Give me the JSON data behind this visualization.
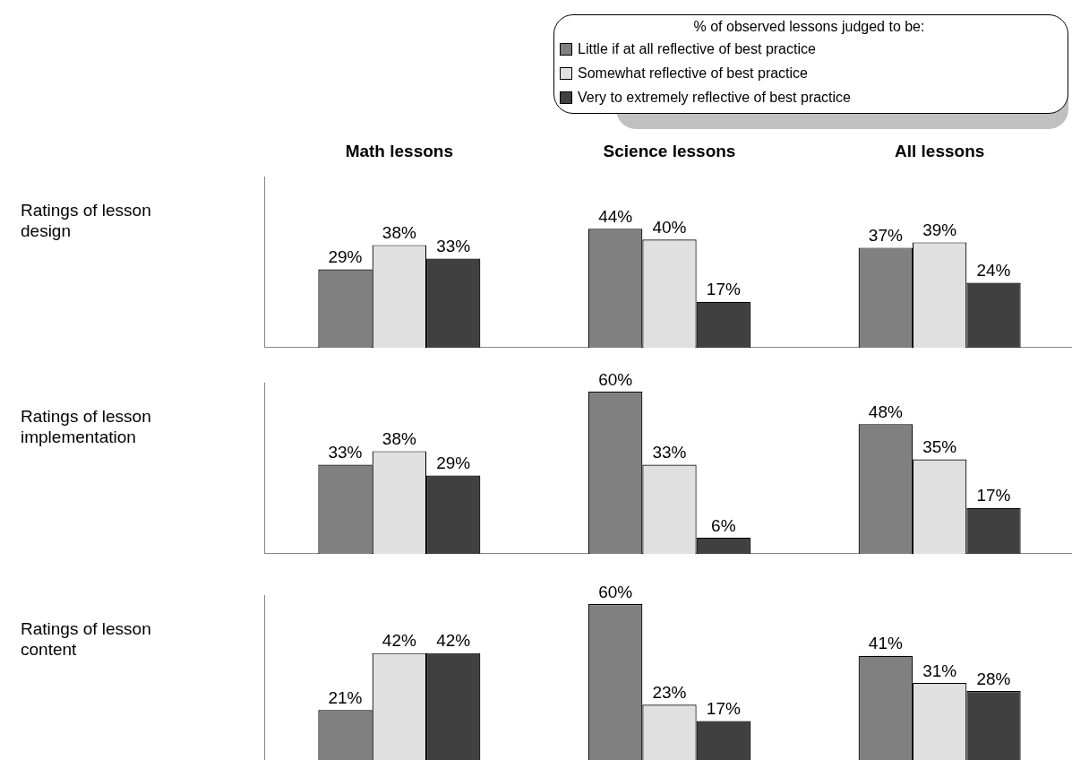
{
  "chart_data": [
    {
      "type": "bar",
      "ylabel": "Ratings of lesson design",
      "legend_title": "% of observed lessons judged to be:",
      "legend": "top right",
      "tick_labels": "x",
      "categories": [
        "Math lessons",
        "Science lessons",
        "All lessons"
      ],
      "series": [
        {
          "name": "Little if at all reflective of best practice",
          "color": "#808080",
          "values": [
            29,
            44,
            37
          ],
          "value_labels": [
            "29%",
            "44%",
            "37%"
          ]
        },
        {
          "name": "Somewhat reflective of best practice",
          "color": "#e0e0e0",
          "values": [
            38,
            40,
            39
          ],
          "value_labels": [
            "38%",
            "40%",
            "39%"
          ]
        },
        {
          "name": "Very to extremely reflective of best practice",
          "color": "#404040",
          "values": [
            33,
            17,
            24
          ],
          "value_labels": [
            "33%",
            "17%",
            "24%"
          ]
        }
      ]
    },
    {
      "type": "bar",
      "ylabel": "Ratings of lesson implementation",
      "tick_labels": false,
      "categories": [
        null,
        null,
        null
      ],
      "series": [
        {
          "color": "#808080",
          "values": [
            33,
            60,
            48
          ],
          "value_labels": [
            "33%",
            "60%",
            "48%"
          ]
        },
        {
          "color": "#e0e0e0",
          "values": [
            38,
            33,
            35
          ],
          "value_labels": [
            "38%",
            "33%",
            "35%"
          ]
        },
        {
          "color": "#404040",
          "values": [
            29,
            6,
            17
          ],
          "value_labels": [
            "29%",
            "6%",
            "17%"
          ]
        }
      ]
    },
    {
      "type": "bar",
      "ylabel": "Ratings of lesson content",
      "tick_labels": false,
      "categories": [
        null,
        null,
        null
      ],
      "series": [
        {
          "color": "#808080",
          "values": [
            21,
            60,
            41
          ],
          "value_labels": [
            "21%",
            "60%",
            "41%"
          ]
        },
        {
          "color": "#e0e0e0",
          "values": [
            42,
            23,
            31
          ],
          "value_labels": [
            "42%",
            "23%",
            "31%"
          ]
        },
        {
          "color": "#404040",
          "values": [
            42,
            17,
            28
          ],
          "value_labels": [
            "42%",
            "17%",
            "28%"
          ]
        }
      ]
    }
  ]
}
